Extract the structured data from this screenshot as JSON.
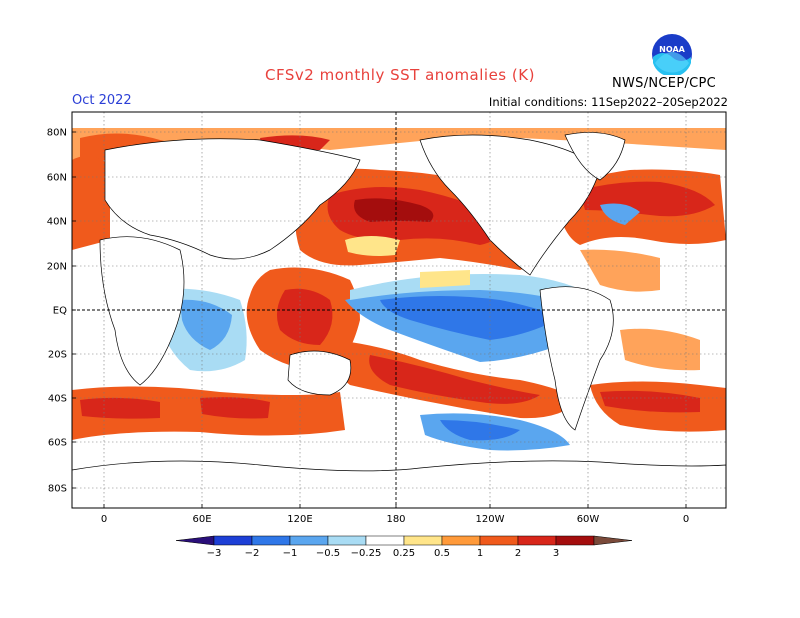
{
  "header": {
    "title": "CFSv2 monthly SST anomalies (K)",
    "month": "Oct 2022",
    "initial_conditions": "Initial conditions: 11Sep2022–20Sep2022",
    "agency": "NWS/NCEP/CPC",
    "logo_text": "NOAA"
  },
  "axes": {
    "lat_labels": [
      "80N",
      "60N",
      "40N",
      "20N",
      "EQ",
      "20S",
      "40S",
      "60S",
      "80S"
    ],
    "lon_labels": [
      "0",
      "60E",
      "120E",
      "180",
      "120W",
      "60W",
      "0"
    ]
  },
  "colorbar": {
    "labels": [
      "-3",
      "-2",
      "-1",
      "-0.5",
      "-0.25",
      "0.25",
      "0.5",
      "1",
      "2",
      "3"
    ],
    "colors": [
      "#2a0f7a",
      "#1d3fd6",
      "#2f77e8",
      "#5aa6ef",
      "#a9dcf4",
      "#ffffff",
      "#ffe58a",
      "#ff9a3a",
      "#f05a1c",
      "#d8261a",
      "#a40d0d",
      "#7a4a3a"
    ]
  }
}
